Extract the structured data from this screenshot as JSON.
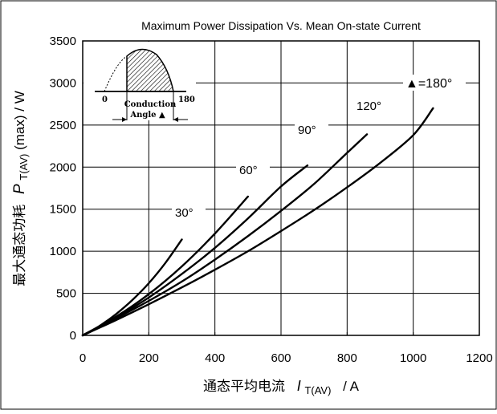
{
  "chart_data": {
    "type": "line",
    "title": "Maximum Power Dissipation Vs. Mean On-state Current",
    "xlabel": {
      "cn": "通态平均电流",
      "sym": "I",
      "sub": "T(AV)",
      "unit": "/  A"
    },
    "ylabel": {
      "cn": "最大通态功耗",
      "sym": "P",
      "sub": "T(AV)",
      "rest": "(max) / W"
    },
    "xlim": [
      0,
      1200
    ],
    "ylim": [
      0,
      3500
    ],
    "x_ticks": [
      "0",
      "200",
      "400",
      "600",
      "800",
      "1000",
      "1200"
    ],
    "y_ticks": [
      "0",
      "500",
      "1000",
      "1500",
      "2000",
      "2500",
      "3000",
      "3500"
    ],
    "grid": true,
    "series": [
      {
        "name": "30°",
        "x": [
          0,
          50,
          100,
          150,
          200,
          250,
          300
        ],
        "y": [
          0,
          110,
          250,
          420,
          620,
          860,
          1140
        ]
      },
      {
        "name": "60°",
        "x": [
          0,
          100,
          200,
          300,
          400,
          500
        ],
        "y": [
          0,
          220,
          490,
          820,
          1210,
          1650
        ]
      },
      {
        "name": "90°",
        "x": [
          0,
          100,
          200,
          300,
          400,
          500,
          600,
          680
        ],
        "y": [
          0,
          210,
          450,
          730,
          1040,
          1390,
          1770,
          2020
        ]
      },
      {
        "name": "120°",
        "x": [
          0,
          100,
          200,
          300,
          400,
          500,
          600,
          700,
          800,
          860
        ],
        "y": [
          0,
          200,
          410,
          640,
          900,
          1180,
          1480,
          1800,
          2170,
          2390
        ]
      },
      {
        "name": "▲=180°",
        "x": [
          0,
          100,
          200,
          300,
          400,
          500,
          600,
          700,
          800,
          900,
          1000,
          1060
        ],
        "y": [
          0,
          180,
          370,
          570,
          780,
          1000,
          1240,
          1490,
          1760,
          2050,
          2380,
          2700
        ]
      }
    ],
    "series_labels": [
      "30°",
      "60°",
      "90°",
      "120°",
      "▲=180°"
    ],
    "inset": {
      "label_zero": "0",
      "label_end": "180",
      "label_conduction": "Conduction",
      "label_angle": "Angle ▲"
    },
    "colors": {
      "line": "#000000",
      "grid": "#000000",
      "background": "#ffffff"
    }
  }
}
